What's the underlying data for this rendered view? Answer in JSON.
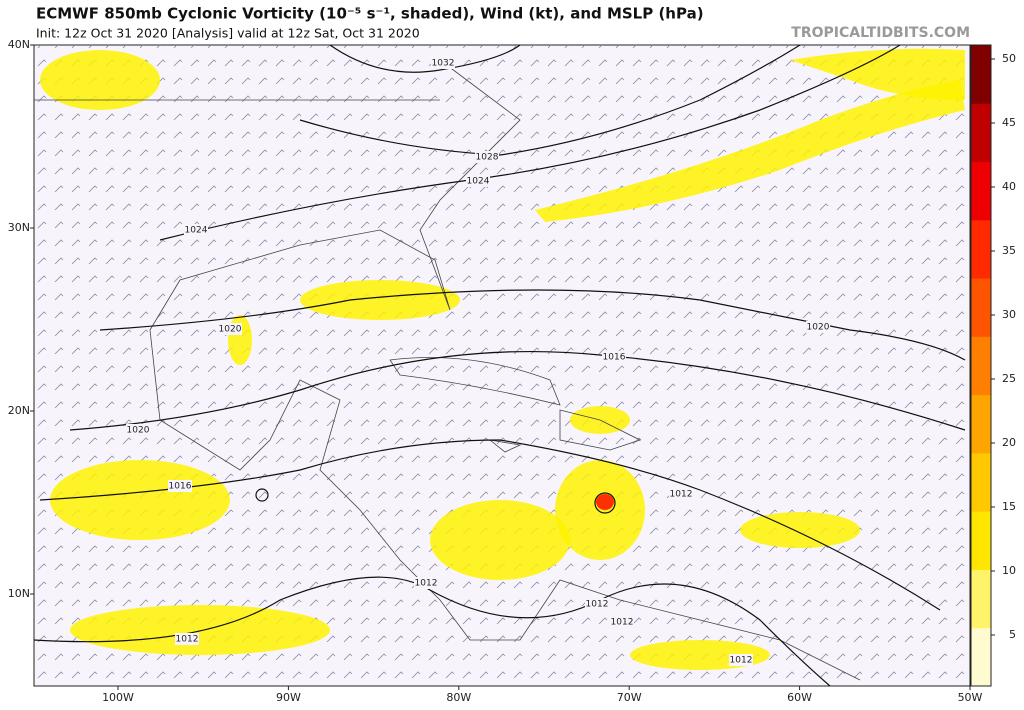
{
  "header": {
    "title": "ECMWF 850mb Cyclonic Vorticity (10⁻⁵ s⁻¹, shaded), Wind (kt), and MSLP (hPa)",
    "subtitle": "Init: 12z Oct 31 2020   [Analysis]   valid at 12z Sat, Oct 31 2020",
    "credit": "TROPICALTIDBITS.COM"
  },
  "map": {
    "lat_labels": [
      "40N",
      "30N",
      "20N",
      "10N"
    ],
    "lon_labels": [
      "100W",
      "90W",
      "80W",
      "70W",
      "60W",
      "50W"
    ],
    "isobar_labels": [
      "1032",
      "1028",
      "1024",
      "1024",
      "1020",
      "1016",
      "1020",
      "1020",
      "1016",
      "1012",
      "1012",
      "1012",
      "1012",
      "1012",
      "1012"
    ]
  },
  "colorbar": {
    "ticks": [
      5,
      10,
      15,
      20,
      25,
      30,
      35,
      40,
      45,
      50
    ],
    "colors": [
      "#fffbd0",
      "#fff36a",
      "#ffe600",
      "#ffc800",
      "#ffa500",
      "#ff7f00",
      "#ff5500",
      "#ff2a00",
      "#ee0000",
      "#c00000",
      "#800000"
    ]
  }
}
